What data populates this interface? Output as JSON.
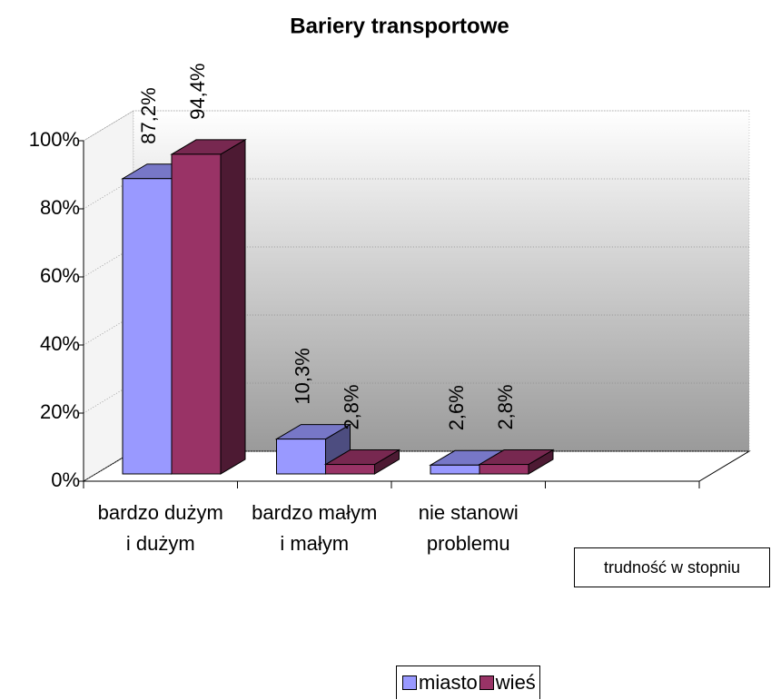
{
  "chart_data": {
    "type": "bar3d",
    "title": "Bariery transportowe",
    "categories": [
      "bardzo dużym i dużym",
      "bardzo małym i małym",
      "nie stanowi problemu",
      null
    ],
    "series": [
      {
        "name": "miasto",
        "color": "#9999ff",
        "values": [
          87.2,
          10.3,
          2.6,
          null
        ],
        "value_labels": [
          "87,2%",
          "10,3%",
          "2,6%",
          null
        ]
      },
      {
        "name": "wieś",
        "color": "#993366",
        "values": [
          94.4,
          2.8,
          2.8,
          null
        ],
        "value_labels": [
          "94,4%",
          "2,8%",
          "2,8%",
          null
        ]
      }
    ],
    "ylim": [
      0,
      100
    ],
    "yticks": [
      {
        "value": 0,
        "label": "0%"
      },
      {
        "value": 20,
        "label": "20%"
      },
      {
        "value": 40,
        "label": "40%"
      },
      {
        "value": 60,
        "label": "60%"
      },
      {
        "value": 80,
        "label": "80%"
      },
      {
        "value": 100,
        "label": "100%"
      }
    ],
    "grid": true,
    "annotation": "trudność w stopniu",
    "legend": "bottom"
  }
}
